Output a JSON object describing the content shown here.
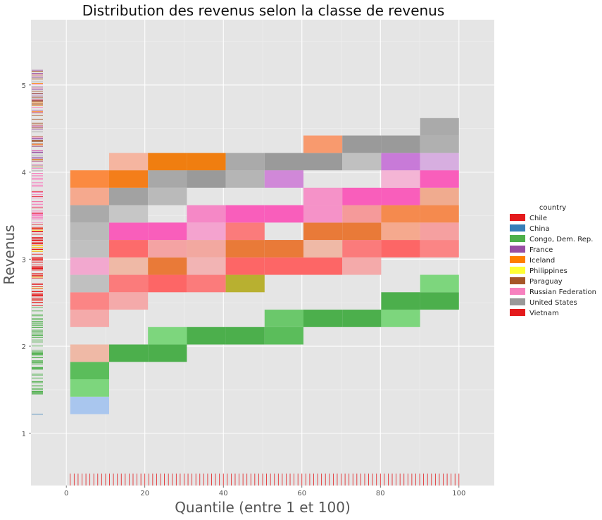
{
  "chart_data": {
    "type": "heatmap",
    "title": "Distribution des revenus selon la classe de revenus",
    "xlabel": "Quantile (entre 1 et 100)",
    "ylabel": "Revenus",
    "xlim": [
      -9,
      109
    ],
    "ylim": [
      0.4,
      5.75
    ],
    "x_ticks": [
      0,
      20,
      40,
      60,
      80,
      100
    ],
    "y_ticks": [
      1,
      2,
      3,
      4,
      5
    ],
    "grid": true,
    "legend_position": "right",
    "legend": {
      "title": "country",
      "entries": [
        {
          "name": "Chile",
          "color": "#e41a1c"
        },
        {
          "name": "China",
          "color": "#377eb8"
        },
        {
          "name": "Congo, Dem. Rep.",
          "color": "#4daf4a"
        },
        {
          "name": "France",
          "color": "#984ea3"
        },
        {
          "name": "Iceland",
          "color": "#ff7f00"
        },
        {
          "name": "Philippines",
          "color": "#ffff33"
        },
        {
          "name": "Paraguay",
          "color": "#a65628"
        },
        {
          "name": "Russian Federation",
          "color": "#f781bf"
        },
        {
          "name": "United States",
          "color": "#999999"
        },
        {
          "name": "Vietnam",
          "color": "#e41a1c"
        }
      ]
    },
    "x_bin_edges": [
      1,
      10.9,
      20.8,
      30.7,
      40.6,
      50.5,
      60.4,
      70.3,
      80.2,
      90.1,
      100
    ],
    "y_bin_edges": [
      1.22,
      1.42,
      1.62,
      1.82,
      2.02,
      2.22,
      2.42,
      2.62,
      2.82,
      3.02,
      3.22,
      3.42,
      3.62,
      3.82,
      4.02,
      4.22,
      4.42,
      4.62,
      4.82,
      5.02,
      5.22
    ],
    "cells": [
      [
        0,
        0,
        "#a9c6ee"
      ],
      [
        0,
        1,
        "#7dd67d"
      ],
      [
        0,
        2,
        "#5bbd5b"
      ],
      [
        0,
        3,
        "#efb9a6"
      ],
      [
        0,
        5,
        "#f4aaaa"
      ],
      [
        0,
        6,
        "#fb8585"
      ],
      [
        0,
        7,
        "#c0c0c0"
      ],
      [
        0,
        8,
        "#f2a8cf"
      ],
      [
        0,
        9,
        "#c0c0c0"
      ],
      [
        0,
        10,
        "#bababa"
      ],
      [
        0,
        11,
        "#aaaaaa"
      ],
      [
        0,
        12,
        "#f5a98e"
      ],
      [
        0,
        13,
        "#fb8a40"
      ],
      [
        1,
        3,
        "#4caf4c"
      ],
      [
        1,
        6,
        "#f4aaaa"
      ],
      [
        1,
        7,
        "#fb7b7b"
      ],
      [
        1,
        8,
        "#efb9a6"
      ],
      [
        1,
        9,
        "#fd6b6b"
      ],
      [
        1,
        10,
        "#f95ebb"
      ],
      [
        1,
        11,
        "#c6c6c6"
      ],
      [
        1,
        12,
        "#a2a2a2"
      ],
      [
        1,
        13,
        "#f47e1a"
      ],
      [
        1,
        14,
        "#f5b5a0"
      ],
      [
        2,
        3,
        "#4caf4c"
      ],
      [
        2,
        4,
        "#7dd67d"
      ],
      [
        2,
        7,
        "#fd6666"
      ],
      [
        2,
        8,
        "#e97a38"
      ],
      [
        2,
        9,
        "#f4a3a3"
      ],
      [
        2,
        10,
        "#f95ebb"
      ],
      [
        2,
        12,
        "#bababa"
      ],
      [
        2,
        13,
        "#a8a8a8"
      ],
      [
        2,
        14,
        "#f07e10"
      ],
      [
        3,
        4,
        "#4caf4c"
      ],
      [
        3,
        7,
        "#fb7b7b"
      ],
      [
        3,
        8,
        "#f2b4b4"
      ],
      [
        3,
        9,
        "#f2a8a0"
      ],
      [
        3,
        10,
        "#f4a3cf"
      ],
      [
        3,
        11,
        "#f588c6"
      ],
      [
        3,
        13,
        "#9a9a9a"
      ],
      [
        3,
        14,
        "#f07e10"
      ],
      [
        4,
        4,
        "#4caf4c"
      ],
      [
        4,
        7,
        "#b8b030"
      ],
      [
        4,
        8,
        "#fd6666"
      ],
      [
        4,
        9,
        "#e97a38"
      ],
      [
        4,
        10,
        "#fb7b7b"
      ],
      [
        4,
        11,
        "#f95ebb"
      ],
      [
        4,
        13,
        "#b5b5b5"
      ],
      [
        4,
        14,
        "#aaaaaa"
      ],
      [
        5,
        5,
        "#6bc86b"
      ],
      [
        5,
        4,
        "#5bbd5b"
      ],
      [
        5,
        8,
        "#fd6666"
      ],
      [
        5,
        9,
        "#e97a38"
      ],
      [
        5,
        11,
        "#f95ebb"
      ],
      [
        5,
        13,
        "#d088d8"
      ],
      [
        5,
        14,
        "#9a9a9a"
      ],
      [
        6,
        5,
        "#4caf4c"
      ],
      [
        6,
        8,
        "#fd6666"
      ],
      [
        6,
        9,
        "#efb9a6"
      ],
      [
        6,
        10,
        "#e97a38"
      ],
      [
        6,
        11,
        "#f592c8"
      ],
      [
        6,
        12,
        "#f592c8"
      ],
      [
        6,
        14,
        "#9a9a9a"
      ],
      [
        6,
        15,
        "#f89a6e"
      ],
      [
        7,
        5,
        "#4caf4c"
      ],
      [
        7,
        8,
        "#f4aaaa"
      ],
      [
        7,
        9,
        "#fb7b7b"
      ],
      [
        7,
        10,
        "#e97a38"
      ],
      [
        7,
        11,
        "#f59a9a"
      ],
      [
        7,
        12,
        "#f95ebb"
      ],
      [
        7,
        14,
        "#c0c0c0"
      ],
      [
        7,
        15,
        "#9a9a9a"
      ],
      [
        8,
        5,
        "#7dd67d"
      ],
      [
        8,
        6,
        "#4caf4c"
      ],
      [
        8,
        9,
        "#fd6666"
      ],
      [
        8,
        10,
        "#f5a98e"
      ],
      [
        8,
        11,
        "#f58a4e"
      ],
      [
        8,
        12,
        "#f95ebb"
      ],
      [
        8,
        13,
        "#f4b5d5"
      ],
      [
        8,
        14,
        "#c87ad8"
      ],
      [
        8,
        15,
        "#9a9a9a"
      ],
      [
        9,
        6,
        "#4caf4c"
      ],
      [
        9,
        7,
        "#7dd67d"
      ],
      [
        9,
        9,
        "#fb8585"
      ],
      [
        9,
        10,
        "#f5a0a0"
      ],
      [
        9,
        11,
        "#f58a4e"
      ],
      [
        9,
        12,
        "#f0ab8f"
      ],
      [
        9,
        13,
        "#f95ebb"
      ],
      [
        9,
        14,
        "#d7aee0"
      ],
      [
        9,
        15,
        "#b0b0b0"
      ],
      [
        9,
        16,
        "#aaaaaa"
      ],
      [
        10,
        7,
        "#5bbd5b"
      ],
      [
        10,
        8,
        "#6bc86b"
      ],
      [
        10,
        10,
        "#fb8585"
      ],
      [
        10,
        11,
        "#f5a0a0"
      ],
      [
        10,
        12,
        "#f5956b"
      ],
      [
        10,
        13,
        "#f2b5b0"
      ],
      [
        10,
        14,
        "#f58ac4"
      ],
      [
        10,
        15,
        "#f2a8cf"
      ],
      [
        10,
        16,
        "#aaaaaa"
      ],
      [
        10,
        17,
        "#b0b0b0"
      ],
      [
        10,
        18,
        "#b0b0b0"
      ],
      [
        10,
        19,
        "#c4c4c4"
      ]
    ],
    "rug_colors": [
      "#e41a1c",
      "#4daf4a",
      "#f781bf",
      "#ff7f00",
      "#999999",
      "#a65628",
      "#984ea3",
      "#377eb8",
      "#ffff33"
    ]
  }
}
